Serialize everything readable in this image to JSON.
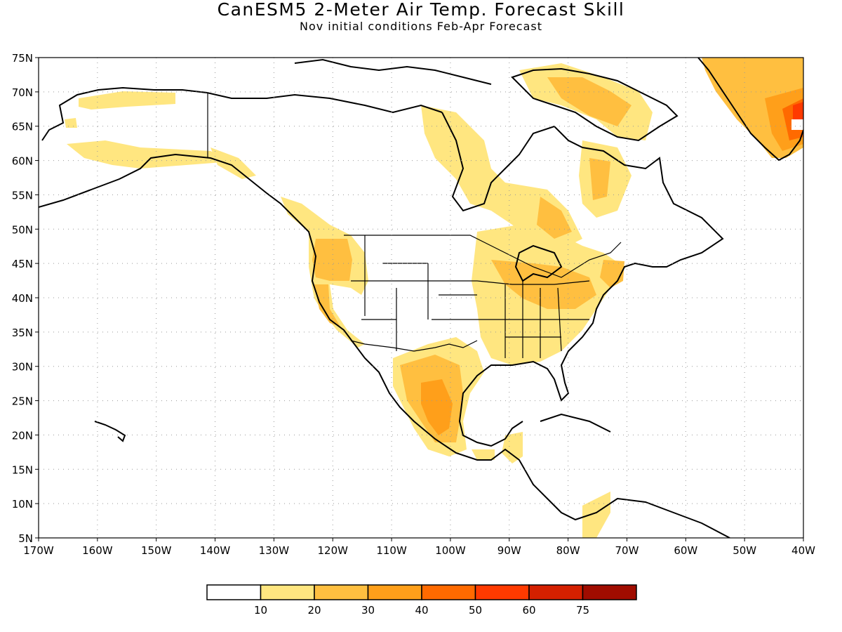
{
  "title": "CanESM5 2-Meter Air Temp. Forecast Skill",
  "subtitle": "Nov initial conditions  Feb-Apr Forecast",
  "map": {
    "lon_range": [
      -170,
      -40
    ],
    "lat_range": [
      5,
      75
    ],
    "lat_labels": [
      "5N",
      "10N",
      "15N",
      "20N",
      "25N",
      "30N",
      "35N",
      "40N",
      "45N",
      "50N",
      "55N",
      "60N",
      "65N",
      "70N",
      "75N"
    ],
    "lon_labels": [
      "170W",
      "160W",
      "150W",
      "140W",
      "130W",
      "120W",
      "110W",
      "100W",
      "90W",
      "80W",
      "70W",
      "60W",
      "50W",
      "40W"
    ],
    "gridlines": "dotted"
  },
  "legend": {
    "labels": [
      "10",
      "20",
      "30",
      "40",
      "50",
      "60",
      "75"
    ],
    "colors": [
      "#ffffff",
      "#ffe680",
      "#ffbf40",
      "#ff9f1a",
      "#ff6a00",
      "#ff3a00",
      "#d42000",
      "#a00c00"
    ]
  },
  "shading": [
    {
      "level": 1,
      "name": "alaska-north"
    },
    {
      "level": 1,
      "name": "alaska-south"
    },
    {
      "level": 1,
      "name": "canada-west"
    },
    {
      "level": 2,
      "name": "pacific-northwest"
    },
    {
      "level": 2,
      "name": "california"
    },
    {
      "level": 1,
      "name": "midwest-east"
    },
    {
      "level": 2,
      "name": "mexico"
    },
    {
      "level": 3,
      "name": "mexico-core"
    },
    {
      "level": 1,
      "name": "quebec-labrador"
    },
    {
      "level": 2,
      "name": "greenland"
    },
    {
      "level": 4,
      "name": "greenland-east"
    }
  ]
}
